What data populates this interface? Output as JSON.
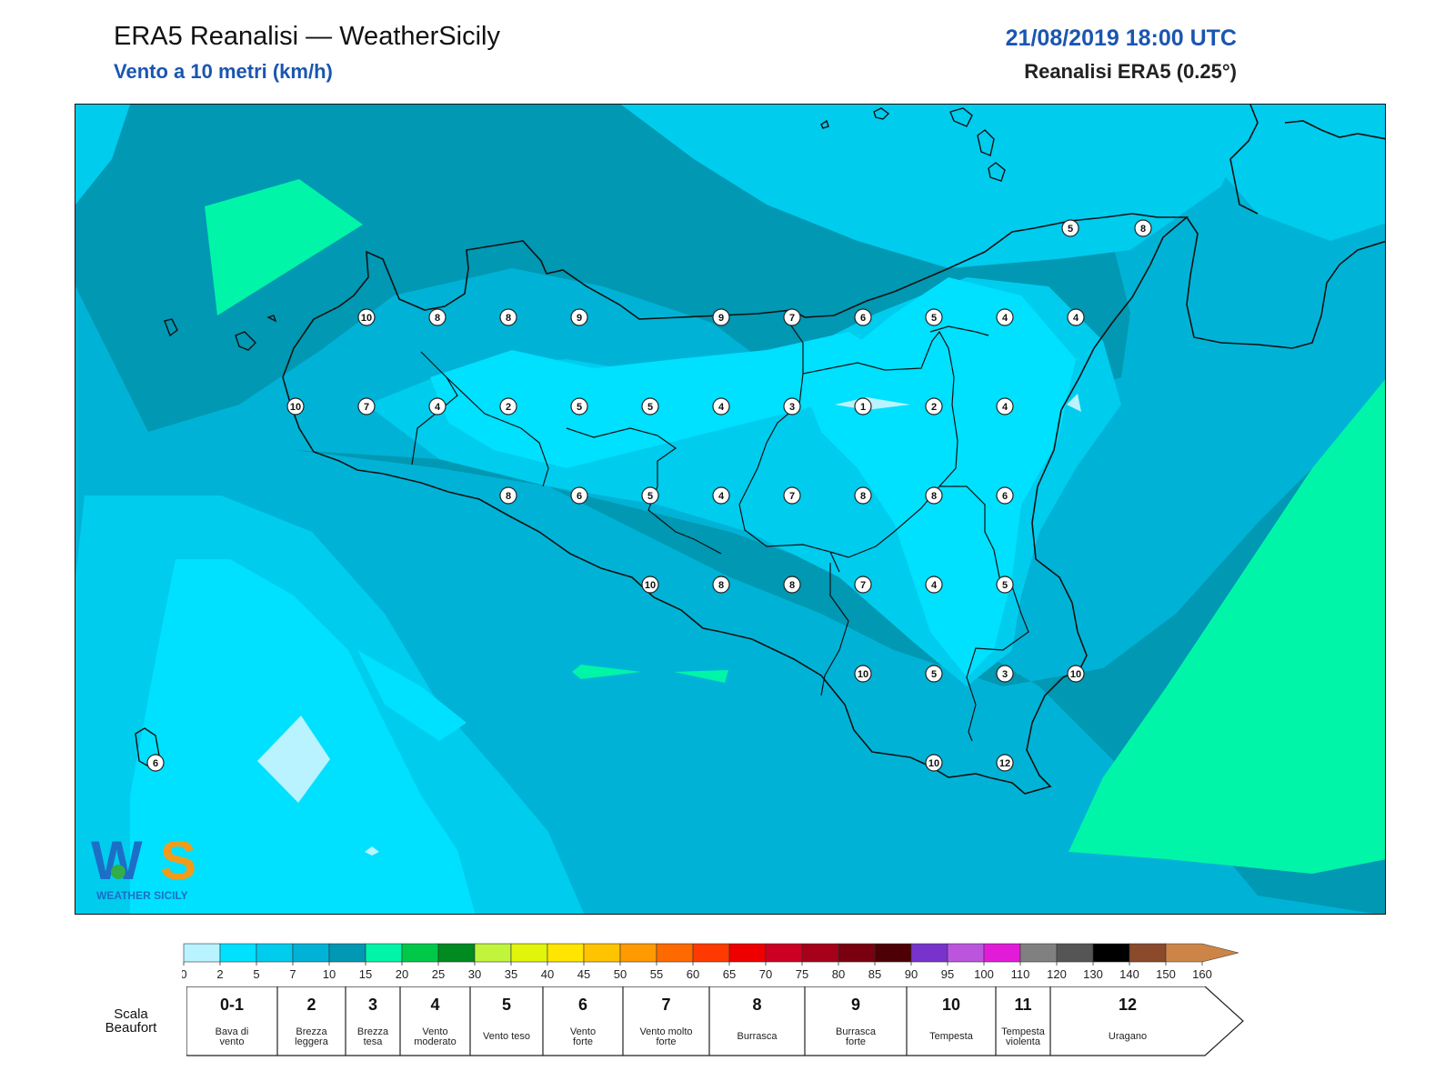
{
  "header": {
    "title": "ERA5 Reanalisi — WeatherSicily",
    "subtitle": "Vento a 10 metri (km/h)",
    "datetime": "21/08/2019 18:00 UTC",
    "dataset": "Reanalisi ERA5 (0.25°)"
  },
  "map": {
    "palette": {
      "sea_band_dark": "#0098b3",
      "band_mid": "#00b3d6",
      "band_light": "#00ccee",
      "band_cyan": "#00e0ff",
      "pale": "#b8f3ff",
      "green": "#00f5a8",
      "coast": "#111111"
    },
    "wind_labels": [
      {
        "value": "5"
      },
      {
        "value": "8"
      },
      {
        "value": "10"
      },
      {
        "value": "8"
      },
      {
        "value": "8"
      },
      {
        "value": "9"
      },
      {
        "value": "9"
      },
      {
        "value": "7"
      },
      {
        "value": "6"
      },
      {
        "value": "5"
      },
      {
        "value": "4"
      },
      {
        "value": "4"
      },
      {
        "value": "10"
      },
      {
        "value": "7"
      },
      {
        "value": "4"
      },
      {
        "value": "2"
      },
      {
        "value": "5"
      },
      {
        "value": "5"
      },
      {
        "value": "4"
      },
      {
        "value": "3"
      },
      {
        "value": "1"
      },
      {
        "value": "2"
      },
      {
        "value": "4"
      },
      {
        "value": "8"
      },
      {
        "value": "6"
      },
      {
        "value": "5"
      },
      {
        "value": "4"
      },
      {
        "value": "7"
      },
      {
        "value": "8"
      },
      {
        "value": "8"
      },
      {
        "value": "6"
      },
      {
        "value": "10"
      },
      {
        "value": "8"
      },
      {
        "value": "8"
      },
      {
        "value": "7"
      },
      {
        "value": "4"
      },
      {
        "value": "5"
      },
      {
        "value": "10"
      },
      {
        "value": "5"
      },
      {
        "value": "3"
      },
      {
        "value": "10"
      },
      {
        "value": "10"
      },
      {
        "value": "12"
      },
      {
        "value": "6"
      }
    ]
  },
  "logo": {
    "mark": "WS",
    "text": "WEATHER SICILY"
  },
  "colorbar": {
    "ticks": [
      "0",
      "2",
      "5",
      "7",
      "10",
      "15",
      "20",
      "25",
      "30",
      "35",
      "40",
      "45",
      "50",
      "55",
      "60",
      "65",
      "70",
      "75",
      "80",
      "85",
      "90",
      "95",
      "100",
      "110",
      "120",
      "130",
      "140",
      "150",
      "160"
    ],
    "colors": [
      "#b8f3ff",
      "#00e0ff",
      "#00ccee",
      "#00b3d6",
      "#0098b3",
      "#00f5a8",
      "#00c94a",
      "#008a22",
      "#c0f53b",
      "#e0f50a",
      "#ffe500",
      "#ffc400",
      "#ff9a00",
      "#ff6a00",
      "#ff3a00",
      "#ee0000",
      "#cc0022",
      "#a6001a",
      "#7a0010",
      "#4d0005",
      "#7733cc",
      "#bb55dd",
      "#e21bd8",
      "#808080",
      "#555555",
      "#000000",
      "#8b4a2b",
      "#cd8547"
    ]
  },
  "beaufort": {
    "label": "Scala Beaufort",
    "grades": [
      {
        "num": "0-1",
        "desc": "Bava di vento"
      },
      {
        "num": "2",
        "desc": "Brezza leggera"
      },
      {
        "num": "3",
        "desc": "Brezza tesa"
      },
      {
        "num": "4",
        "desc": "Vento moderato"
      },
      {
        "num": "5",
        "desc": "Vento teso"
      },
      {
        "num": "6",
        "desc": "Vento forte"
      },
      {
        "num": "7",
        "desc": "Vento molto forte"
      },
      {
        "num": "8",
        "desc": "Burrasca"
      },
      {
        "num": "9",
        "desc": "Burrasca forte"
      },
      {
        "num": "10",
        "desc": "Tempesta"
      },
      {
        "num": "11",
        "desc": "Tempesta violenta"
      },
      {
        "num": "12",
        "desc": "Uragano"
      }
    ]
  }
}
